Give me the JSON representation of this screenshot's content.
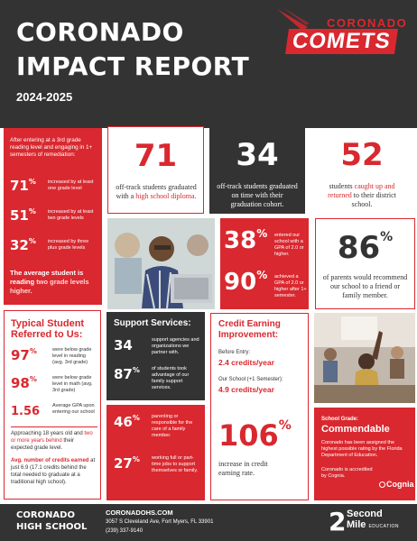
{
  "header": {
    "title_line1": "CORONADO",
    "title_line2": "IMPACT REPORT",
    "year": "2024-2025",
    "logo_top": "CORONADO",
    "logo_main": "COMETS"
  },
  "remediation": {
    "intro": "After entering at a 3rd grade reading level and engaging in 1+ semesters of remediation:",
    "stats": [
      {
        "value": "71",
        "unit": "%",
        "label": "increased by at least one grade level"
      },
      {
        "value": "51",
        "unit": "%",
        "label": "increased by at least two grade levels"
      },
      {
        "value": "32",
        "unit": "%",
        "label": "increased by three plus grade levels"
      }
    ],
    "summary_pre": "The average student is reading ",
    "summary_hl": "two grade levels higher."
  },
  "stat71": {
    "value": "71",
    "pre": "off-track students graduated with a ",
    "hl": "high school diploma."
  },
  "stat34": {
    "value": "34",
    "text": "off-track students graduated on time with their graduation cohort."
  },
  "stat52": {
    "value": "52",
    "pre": "students ",
    "hl": "caught up and returned",
    "post": " to their district school."
  },
  "gpa": [
    {
      "value": "38",
      "unit": "%",
      "label": "entered our school with a GPA of 2.0 or higher."
    },
    {
      "value": "90",
      "unit": "%",
      "label": "achieved a GPA of 2.0 or higher after 1+ semester."
    }
  ],
  "parents": {
    "value": "86",
    "unit": "%",
    "text": "of parents would recommend our school to a friend or family member."
  },
  "typical": {
    "title": "Typical Student Referred to Us:",
    "stats": [
      {
        "value": "97",
        "unit": "%",
        "label": "were below grade level in reading (avg. 3rd grade)"
      },
      {
        "value": "98",
        "unit": "%",
        "label": "were below grade level in math (avg. 3rd grade)"
      },
      {
        "value": "1.56",
        "unit": "",
        "label": "Average GPA upon entering our school"
      }
    ],
    "p1_pre": "Approaching 18 years old and ",
    "p1_hl": "two or more years behind",
    "p1_post": " their expected grade level.",
    "p2_hl": "Avg. number of credits earned",
    "p2_post": " at just 6.9 (17.1 credits behind the total needed to graduate at a traditional high school)."
  },
  "support": {
    "title": "Support Services:",
    "stats": [
      {
        "value": "34",
        "unit": "",
        "label": "support agencies and organizations we partner with."
      },
      {
        "value": "87",
        "unit": "%",
        "label": "of students took advantage of our family support services."
      }
    ]
  },
  "family": [
    {
      "value": "46",
      "unit": "%",
      "label": "parenting or responsible for the care of a family member."
    },
    {
      "value": "27",
      "unit": "%",
      "label": "working full or part-time jobs to support themselves or family."
    }
  ],
  "credit": {
    "title": "Credit Earning Improvement:",
    "before_label": "Before Entry:",
    "before_value": "2.4 credits/year",
    "school_label": "Our School (+1 Semester):",
    "school_value": "4.9 credits/year",
    "big": "106",
    "big_unit": "%",
    "big_text": "increase in credit earning rate."
  },
  "grade": {
    "label": "School Grade:",
    "value": "Commendable",
    "desc": "Coronado has been assigned the highest possible rating by the Florida Department of Education.",
    "accred": "Coronado is accredited by Cognia.",
    "cognia": "Cognia"
  },
  "footer": {
    "school_l1": "CORONADO",
    "school_l2": "HIGH SCHOOL",
    "url": "CORONADOHS.COM",
    "address": "3057 S Cleveland Ave, Fort Myers, FL 33901",
    "phone": "(239) 337-9140",
    "brand_num": "2",
    "brand_l1": "Second",
    "brand_l2": "Mile",
    "brand_sub": "EDUCATION"
  },
  "colors": {
    "accent": "#d9282f",
    "dark": "#333333"
  }
}
